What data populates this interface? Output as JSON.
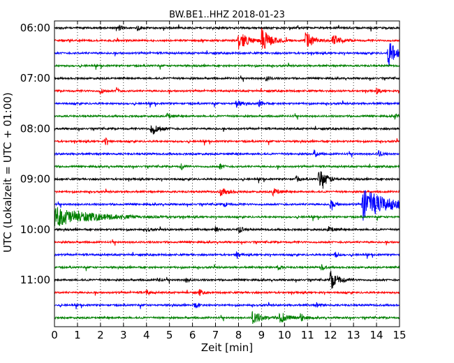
{
  "chart_data": {
    "type": "line",
    "title": "BW.BE1..HHZ 2018-01-23",
    "xlabel": "Zeit  [min]",
    "ylabel": "UTC (Lokalzeit = UTC + 01:00)",
    "xlim": [
      0,
      15
    ],
    "x_ticks": [
      "0",
      "1",
      "2",
      "3",
      "4",
      "5",
      "6",
      "7",
      "8",
      "9",
      "10",
      "11",
      "12",
      "13",
      "14",
      "15"
    ],
    "y_ticks": [
      "06:00",
      "07:00",
      "08:00",
      "09:00",
      "10:00",
      "11:00"
    ],
    "trace_interval_min": 15,
    "start_time": "06:00",
    "grid": "vertical dotted",
    "colors": [
      "#000000",
      "#ff0000",
      "#0000ff",
      "#008000"
    ],
    "series": [
      {
        "start": "06:00",
        "events": [
          {
            "t": 2.8,
            "amp": 0.3,
            "dur": 0.2
          },
          {
            "t": 3.6,
            "amp": 0.3,
            "dur": 0.2
          }
        ]
      },
      {
        "start": "06:15",
        "events": [
          {
            "t": 8.0,
            "amp": 0.9,
            "dur": 0.6
          },
          {
            "t": 9.0,
            "amp": 1.1,
            "dur": 0.6
          },
          {
            "t": 10.9,
            "amp": 0.9,
            "dur": 0.5
          },
          {
            "t": 12.1,
            "amp": 0.6,
            "dur": 0.5
          }
        ]
      },
      {
        "start": "06:30",
        "events": [
          {
            "t": 14.5,
            "amp": 1.4,
            "dur": 0.5
          }
        ]
      },
      {
        "start": "06:45",
        "events": []
      },
      {
        "start": "07:00",
        "events": [
          {
            "t": 9.2,
            "amp": 0.3,
            "dur": 0.2
          }
        ]
      },
      {
        "start": "07:15",
        "events": [
          {
            "t": 2.0,
            "amp": 0.3,
            "dur": 0.2
          },
          {
            "t": 2.7,
            "amp": 0.3,
            "dur": 0.2
          },
          {
            "t": 14.0,
            "amp": 0.3,
            "dur": 0.2
          }
        ]
      },
      {
        "start": "07:30",
        "events": [
          {
            "t": 7.9,
            "amp": 0.4,
            "dur": 0.3
          },
          {
            "t": 8.9,
            "amp": 0.4,
            "dur": 0.2
          }
        ]
      },
      {
        "start": "07:45",
        "events": [
          {
            "t": 4.9,
            "amp": 0.3,
            "dur": 0.2
          },
          {
            "t": 14.8,
            "amp": 0.3,
            "dur": 0.2
          }
        ]
      },
      {
        "start": "08:00",
        "events": [
          {
            "t": 4.2,
            "amp": 0.6,
            "dur": 0.5
          }
        ]
      },
      {
        "start": "08:15",
        "events": [
          {
            "t": 2.2,
            "amp": 0.4,
            "dur": 0.2
          }
        ]
      },
      {
        "start": "08:30",
        "events": [
          {
            "t": 11.3,
            "amp": 0.4,
            "dur": 0.2
          },
          {
            "t": 14.1,
            "amp": 0.3,
            "dur": 0.2
          }
        ]
      },
      {
        "start": "08:45",
        "events": [
          {
            "t": 5.5,
            "amp": 0.3,
            "dur": 0.2
          },
          {
            "t": 7.2,
            "amp": 0.3,
            "dur": 0.2
          }
        ]
      },
      {
        "start": "09:00",
        "events": [
          {
            "t": 10.5,
            "amp": 0.3,
            "dur": 0.2
          },
          {
            "t": 11.5,
            "amp": 1.0,
            "dur": 0.5
          }
        ]
      },
      {
        "start": "09:15",
        "events": [
          {
            "t": 7.2,
            "amp": 0.4,
            "dur": 0.5
          },
          {
            "t": 9.5,
            "amp": 0.4,
            "dur": 0.3
          }
        ]
      },
      {
        "start": "09:30",
        "events": [
          {
            "t": 7.4,
            "amp": 0.3,
            "dur": 0.2
          },
          {
            "t": 12.0,
            "amp": 0.4,
            "dur": 0.3
          },
          {
            "t": 13.4,
            "amp": 1.6,
            "dur": 1.6
          }
        ]
      },
      {
        "start": "09:45",
        "events": [
          {
            "t": 0.0,
            "amp": 0.9,
            "dur": 2.5
          }
        ]
      },
      {
        "start": "10:00",
        "events": [
          {
            "t": 4.0,
            "amp": 0.2,
            "dur": 0.2
          },
          {
            "t": 7.0,
            "amp": 0.3,
            "dur": 0.2
          },
          {
            "t": 8.0,
            "amp": 0.3,
            "dur": 0.3
          },
          {
            "t": 11.9,
            "amp": 0.3,
            "dur": 0.3
          }
        ]
      },
      {
        "start": "10:15",
        "events": []
      },
      {
        "start": "10:30",
        "events": [
          {
            "t": 7.9,
            "amp": 0.3,
            "dur": 0.2
          },
          {
            "t": 12.2,
            "amp": 0.3,
            "dur": 0.2
          }
        ]
      },
      {
        "start": "10:45",
        "events": [
          {
            "t": 9.7,
            "amp": 0.3,
            "dur": 0.2
          },
          {
            "t": 11.6,
            "amp": 0.3,
            "dur": 0.2
          }
        ]
      },
      {
        "start": "11:00",
        "events": [
          {
            "t": 4.5,
            "amp": 0.3,
            "dur": 0.2
          },
          {
            "t": 5.7,
            "amp": 0.3,
            "dur": 0.2
          },
          {
            "t": 12.0,
            "amp": 1.0,
            "dur": 0.5
          }
        ]
      },
      {
        "start": "11:15",
        "events": [
          {
            "t": 4.0,
            "amp": 0.3,
            "dur": 0.2
          },
          {
            "t": 6.3,
            "amp": 0.3,
            "dur": 0.2
          }
        ]
      },
      {
        "start": "11:30",
        "events": [
          {
            "t": 6.1,
            "amp": 0.3,
            "dur": 0.2
          },
          {
            "t": 11.4,
            "amp": 0.3,
            "dur": 0.2
          }
        ]
      },
      {
        "start": "11:45",
        "events": [
          {
            "t": 8.6,
            "amp": 0.6,
            "dur": 0.6
          },
          {
            "t": 9.8,
            "amp": 0.6,
            "dur": 0.5
          },
          {
            "t": 10.7,
            "amp": 0.4,
            "dur": 0.3
          }
        ]
      }
    ]
  }
}
